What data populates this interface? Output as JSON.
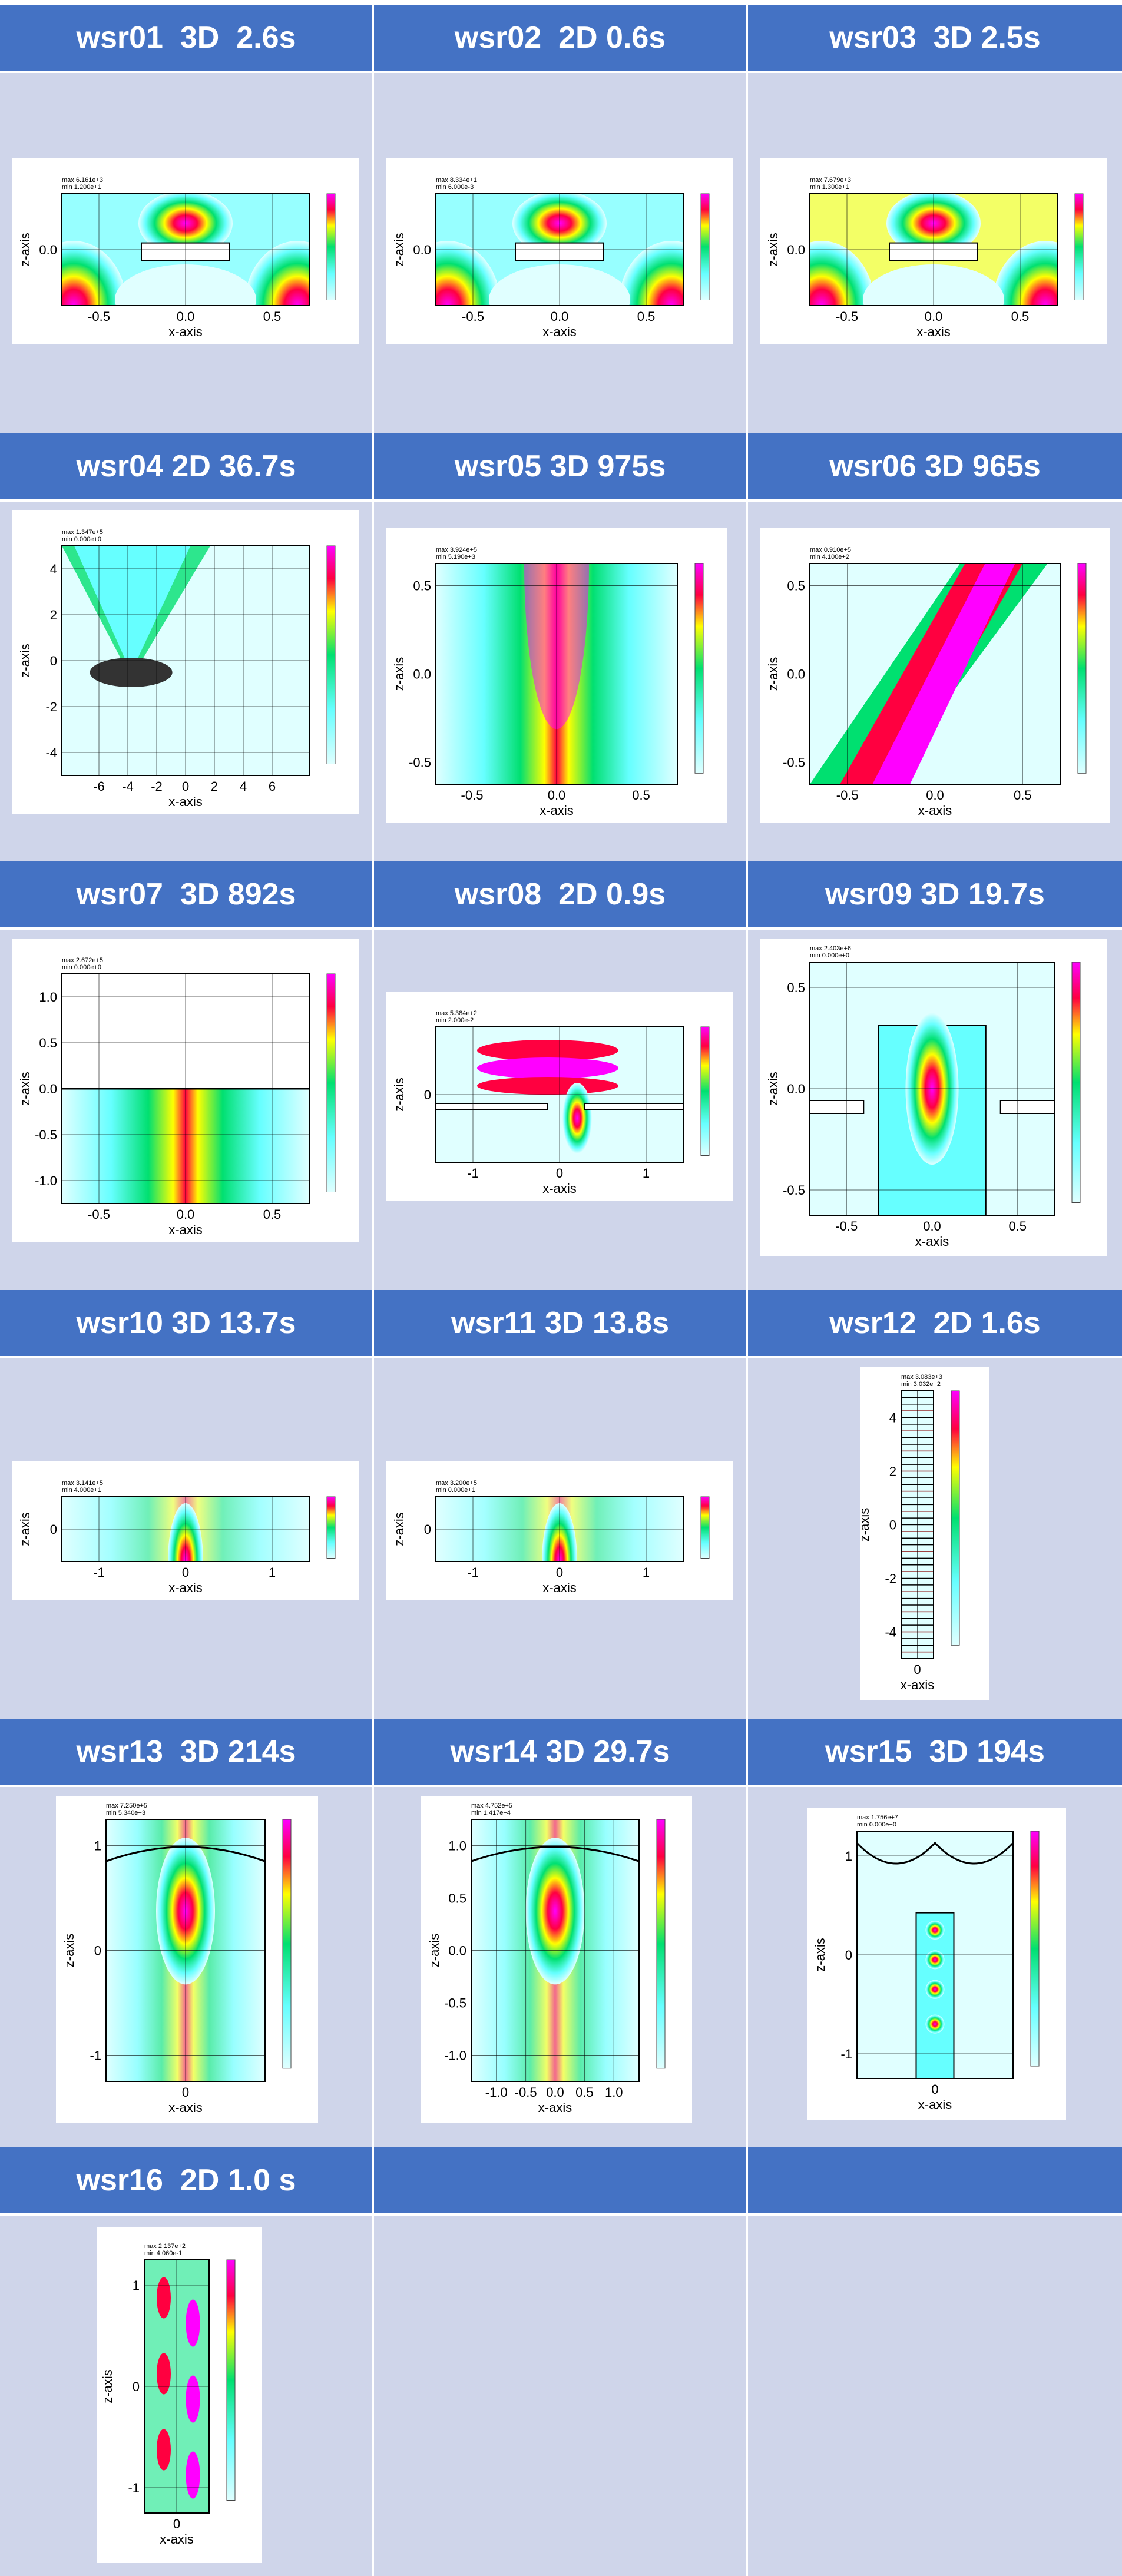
{
  "cells": [
    {
      "id": "wsr01",
      "title": "wsr01  3D  2.6s",
      "max_label": "max  6.161e+3",
      "min_label": "min  1.200e+1",
      "z_ticks": [
        "0.0"
      ],
      "x_ticks": [
        "-0.5",
        "0.0",
        "0.5"
      ],
      "xlabel": "x-axis",
      "ylabel": "z-axis"
    },
    {
      "id": "wsr02",
      "title": "wsr02  2D 0.6s",
      "max_label": "max  8.334e+1",
      "min_label": "min  6.000e-3",
      "z_ticks": [
        "0.0"
      ],
      "x_ticks": [
        "-0.5",
        "0.0",
        "0.5"
      ],
      "xlabel": "x-axis",
      "ylabel": "z-axis"
    },
    {
      "id": "wsr03",
      "title": "wsr03  3D 2.5s",
      "max_label": "max  7.679e+3",
      "min_label": "min  1.300e+1",
      "z_ticks": [
        "0.0"
      ],
      "x_ticks": [
        "-0.5",
        "0.0",
        "0.5"
      ],
      "xlabel": "x-axis",
      "ylabel": "z-axis"
    },
    {
      "id": "wsr04",
      "title": "wsr04 2D 36.7s",
      "max_label": "max  1.347e+5",
      "min_label": "min  0.000e+0",
      "z_ticks": [
        "4",
        "2",
        "0",
        "-2",
        "-4"
      ],
      "x_ticks": [
        "-6",
        "-4",
        "-2",
        "0",
        "2",
        "4",
        "6"
      ],
      "xlabel": "x-axis",
      "ylabel": "z-axis"
    },
    {
      "id": "wsr05",
      "title": "wsr05 3D 975s",
      "max_label": "max  3.924e+5",
      "min_label": "min  5.190e+3",
      "z_ticks": [
        "0.5",
        "0.0",
        "-0.5"
      ],
      "x_ticks": [
        "-0.5",
        "0.0",
        "0.5"
      ],
      "xlabel": "x-axis",
      "ylabel": "z-axis"
    },
    {
      "id": "wsr06",
      "title": "wsr06 3D 965s",
      "max_label": "max  0.910e+5",
      "min_label": "min  4.100e+2",
      "z_ticks": [
        "0.5",
        "0.0",
        "-0.5"
      ],
      "x_ticks": [
        "-0.5",
        "0.0",
        "0.5"
      ],
      "xlabel": "x-axis",
      "ylabel": "z-axis"
    },
    {
      "id": "wsr07",
      "title": "wsr07  3D 892s",
      "max_label": "max  2.672e+5",
      "min_label": "min  0.000e+0",
      "z_ticks": [
        "1.0",
        "0.5",
        "0.0",
        "-0.5",
        "-1.0"
      ],
      "x_ticks": [
        "-0.5",
        "0.0",
        "0.5"
      ],
      "xlabel": "x-axis",
      "ylabel": "z-axis"
    },
    {
      "id": "wsr08",
      "title": "wsr08  2D 0.9s",
      "max_label": "max  5.384e+2",
      "min_label": "min  2.000e-2",
      "z_ticks": [
        "0"
      ],
      "x_ticks": [
        "-1",
        "0",
        "1"
      ],
      "xlabel": "x-axis",
      "ylabel": "z-axis"
    },
    {
      "id": "wsr09",
      "title": "wsr09 3D 19.7s",
      "max_label": "max  2.403e+6",
      "min_label": "min  0.000e+0",
      "z_ticks": [
        "0.5",
        "0.0",
        "-0.5"
      ],
      "x_ticks": [
        "-0.5",
        "0.0",
        "0.5"
      ],
      "xlabel": "x-axis",
      "ylabel": "z-axis"
    },
    {
      "id": "wsr10",
      "title": "wsr10 3D 13.7s",
      "max_label": "max  3.141e+5",
      "min_label": "min  4.000e+1",
      "z_ticks": [
        "0"
      ],
      "x_ticks": [
        "-1",
        "0",
        "1"
      ],
      "xlabel": "x-axis",
      "ylabel": "z-axis"
    },
    {
      "id": "wsr11",
      "title": "wsr11 3D 13.8s",
      "max_label": "max  3.200e+5",
      "min_label": "min  0.000e+1",
      "z_ticks": [
        "0"
      ],
      "x_ticks": [
        "-1",
        "0",
        "1"
      ],
      "xlabel": "x-axis",
      "ylabel": "z-axis"
    },
    {
      "id": "wsr12",
      "title": "wsr12  2D 1.6s",
      "max_label": "max  3.083e+3",
      "min_label": "min  3.032e+2",
      "z_ticks": [
        "4",
        "2",
        "0",
        "-2",
        "-4"
      ],
      "x_ticks": [
        "0"
      ],
      "xlabel": "x-axis",
      "ylabel": "z-axis"
    },
    {
      "id": "wsr13",
      "title": "wsr13  3D 214s",
      "max_label": "max  7.250e+5",
      "min_label": "min  5.340e+3",
      "z_ticks": [
        "1",
        "0",
        "-1"
      ],
      "x_ticks": [
        "0"
      ],
      "xlabel": "x-axis",
      "ylabel": "z-axis"
    },
    {
      "id": "wsr14",
      "title": "wsr14 3D 29.7s",
      "max_label": "max  4.752e+5",
      "min_label": "min  1.417e+4",
      "z_ticks": [
        "1.0",
        "0.5",
        "0.0",
        "-0.5",
        "-1.0"
      ],
      "x_ticks": [
        "-1.0",
        "-0.5",
        "0.0",
        "0.5",
        "1.0"
      ],
      "xlabel": "x-axis",
      "ylabel": "z-axis"
    },
    {
      "id": "wsr15",
      "title": "wsr15  3D 194s",
      "max_label": "max  1.756e+7",
      "min_label": "min  0.000e+0",
      "z_ticks": [
        "1",
        "0",
        "-1"
      ],
      "x_ticks": [
        "0"
      ],
      "xlabel": "x-axis",
      "ylabel": "z-axis"
    },
    {
      "id": "wsr16",
      "title": "wsr16  2D 1.0 s",
      "max_label": "max  2.137e+2",
      "min_label": "min  4.060e-1",
      "z_ticks": [
        "1",
        "0",
        "-1"
      ],
      "x_ticks": [
        "0"
      ],
      "xlabel": "x-axis",
      "ylabel": "z-axis"
    },
    {
      "id": "empty17",
      "title": ""
    },
    {
      "id": "empty18",
      "title": ""
    }
  ],
  "colors": {
    "header_bg": "#4472c4",
    "header_text": "#ffffff",
    "cell_bg": "#cfd5ea",
    "plot_low": "#e0ffff",
    "plot_cyan": "#66ffff",
    "plot_green": "#00e070",
    "plot_yellow": "#ffff00",
    "plot_red": "#ff0040",
    "plot_magenta": "#ff00ff"
  }
}
